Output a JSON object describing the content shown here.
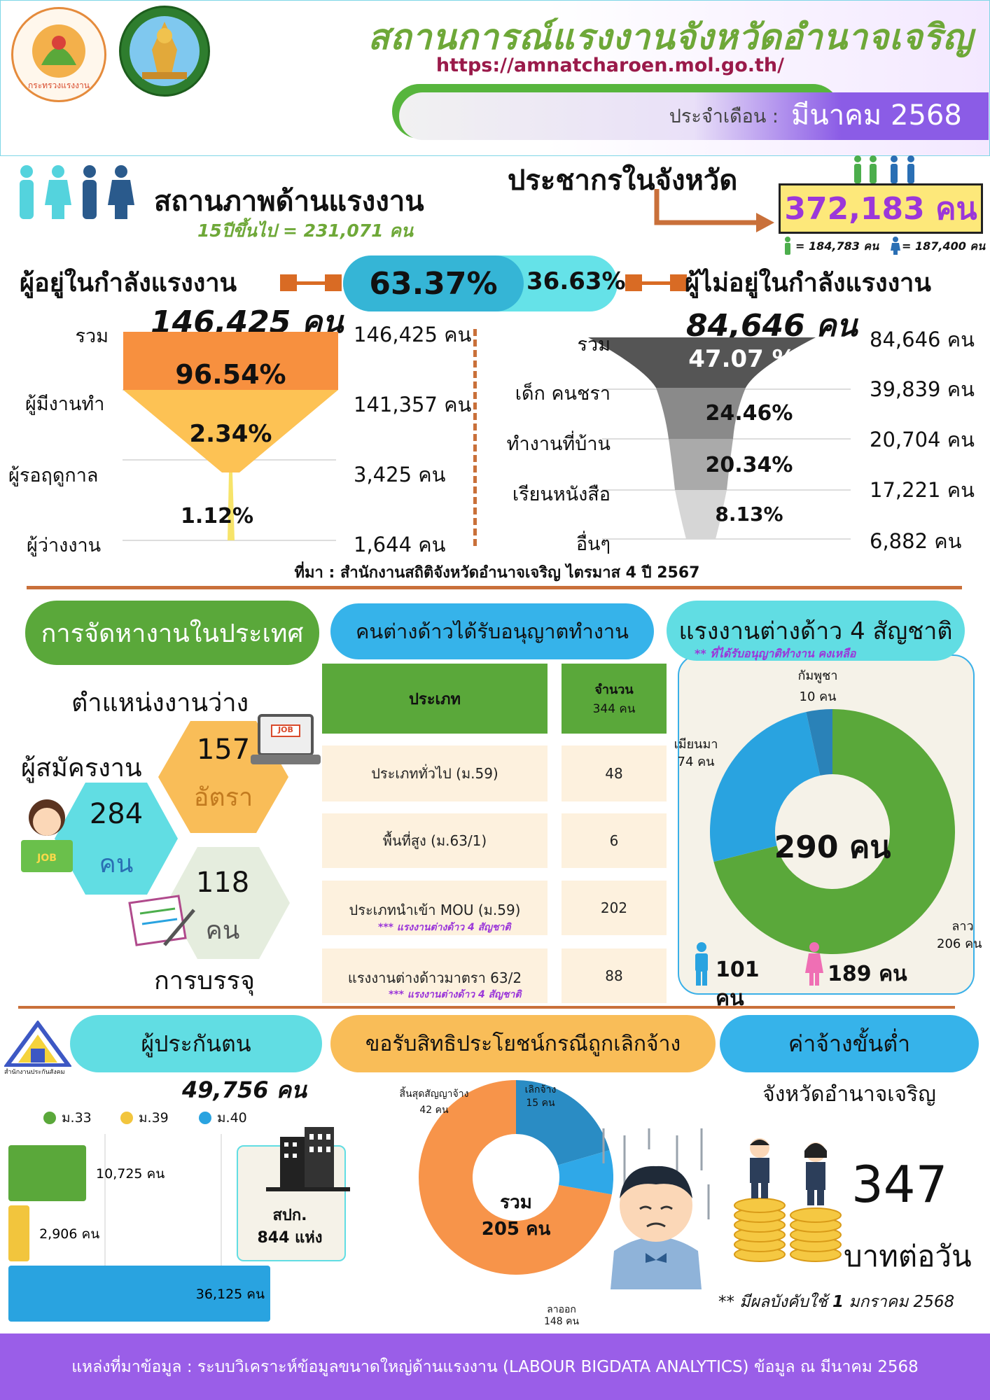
{
  "header": {
    "title": "สถานการณ์แรงงานจังหวัดอำนาจเจริญ",
    "url": "https://amnatcharoen.mol.go.th/",
    "month_label": "ประจำเดือน :",
    "month_value": "มีนาคม 2568",
    "logo1_text": "กระทรวงแรงงาน"
  },
  "labor_status": {
    "title": "สถานภาพด้านแรงงาน",
    "subtitle": "15ปีขึ้นไป = 231,071 คน",
    "population_title": "ประชากรในจังหวัด",
    "population_total": "372,183 คน",
    "population_male": "= 184,783 คน",
    "population_female": "= 187,400 คน",
    "in_force_title": "ผู้อยู่ในกำลังแรงงาน",
    "in_force_total": "146,425 คน",
    "in_force_pct": "63.37%",
    "out_force_pct": "36.63%",
    "out_force_title": "ผู้ไม่อยู่ในกำลังแรงงาน",
    "out_force_total": "84,646 คน",
    "in_rows": [
      {
        "label": "รวม",
        "value": "146,425 คน"
      },
      {
        "label": "ผู้มีงานทำ",
        "value": "141,357 คน"
      },
      {
        "label": "ผู้รอฤดูกาล",
        "value": "3,425 คน"
      },
      {
        "label": "ผู้ว่างงาน",
        "value": "1,644 คน"
      }
    ],
    "in_pcts": [
      "96.54%",
      "2.34%",
      "1.12%"
    ],
    "out_rows": [
      {
        "label": "รวม",
        "value": "84,646 คน"
      },
      {
        "label": "เด็ก คนชรา",
        "value": "39,839 คน"
      },
      {
        "label": "ทำงานที่บ้าน",
        "value": "20,704 คน"
      },
      {
        "label": "เรียนหนังสือ",
        "value": "17,221 คน"
      },
      {
        "label": "อื่นๆ",
        "value": "6,882 คน"
      }
    ],
    "out_pcts": [
      "47.07 %",
      "24.46%",
      "20.34%",
      "8.13%"
    ],
    "source": "ที่มา : สำนักงานสถิติจังหวัดอำนาจเจริญ ไตรมาส 4 ปี 2567"
  },
  "job_placement": {
    "title": "การจัดหางานในประเทศ",
    "vacancy_label": "ตำแหน่งงานว่าง",
    "vacancy_value": "157",
    "vacancy_unit": "อัตรา",
    "applicant_label": "ผู้สมัครงาน",
    "applicant_value": "284",
    "applicant_unit": "คน",
    "placement_value": "118",
    "placement_unit": "คน",
    "placement_label": "การบรรจุ",
    "job_sign": "JOB"
  },
  "foreign_permit": {
    "title": "คนต่างด้าวได้รับอนุญาตทำงาน",
    "col_type": "ประเภท",
    "col_count": "จำนวน",
    "col_count_sub": "344 คน",
    "rows": [
      {
        "type": "ประเภททั่วไป (ม.59)",
        "count": "48",
        "note": ""
      },
      {
        "type": "พื้นที่สูง (ม.63/1)",
        "count": "6",
        "note": ""
      },
      {
        "type": "ประเภทนำเข้า MOU (ม.59)",
        "count": "202",
        "note": "*** แรงงานต่างด้าว 4 สัญชาติ"
      },
      {
        "type": "แรงงานต่างด้าวมาตรา 63/2",
        "count": "88",
        "note": "*** แรงงานต่างด้าว 4 สัญชาติ"
      }
    ]
  },
  "foreign_4": {
    "title": "แรงงานต่างด้าว 4 สัญชาติ",
    "subtitle": "** ที่ได้รับอนุญาติทำงาน คงเหลือ",
    "total": "290 คน",
    "male": "101 คน",
    "female": "189 คน",
    "label_cambodia": "กัมพูชา",
    "label_cambodia_val": "10 คน",
    "label_myanmar": "เมียนมา",
    "label_myanmar_val": "74 คน",
    "label_laos": "ลาว",
    "label_laos_val": "206 คน"
  },
  "insured": {
    "title": "ผู้ประกันตน",
    "total": "49,756 คน",
    "logo_text": "สำนักงานประกันสังคม",
    "legend": [
      "ม.33",
      "ม.39",
      "ม.40"
    ],
    "bars": [
      {
        "label": "10,725 คน",
        "value": 10725
      },
      {
        "label": "2,906 คน",
        "value": 2906
      },
      {
        "label": "36,125 คน",
        "value": 36125
      }
    ],
    "office_label": "สปก.",
    "office_value": "844 แห่ง"
  },
  "severance": {
    "title": "ขอรับสิทธิประโยชน์กรณีถูกเลิกจ้าง",
    "center_label": "รวม",
    "center_value": "205 คน",
    "label_contract": "สิ้นสุดสัญญาจ้าง",
    "label_contract_val": "42 คน",
    "label_fired": "เลิกจ้าง",
    "label_fired_val": "15 คน",
    "label_quit": "ลาออก",
    "label_quit_val": "148 คน"
  },
  "min_wage": {
    "title": "ค่าจ้างขั้นต่ำ",
    "province": "จังหวัดอำนาจเจริญ",
    "value": "347",
    "unit": "บาทต่อวัน",
    "note_prefix": "** มีผลบังคับใช้",
    "note_bold": "1",
    "note_suffix": "มกราคม 2568"
  },
  "footer": {
    "text": "แหล่งที่มาข้อมูล : ระบบวิเคราะห์ข้อมูลขนาดใหญ่ด้านแรงงาน (LABOUR BIGDATA ANALYTICS) ข้อมูล ณ มีนาคม 2568"
  },
  "colors": {
    "green": "#5aa83a",
    "orange": "#f7a348",
    "blue": "#29a3e0",
    "cyan": "#61dde3",
    "purple": "#8b5ce6",
    "brown": "#c9703a"
  },
  "chart_data": [
    {
      "type": "pie",
      "title": "แรงงานต่างด้าว 4 สัญชาติ",
      "categories": [
        "ลาว",
        "เมียนมา",
        "กัมพูชา"
      ],
      "values": [
        206,
        74,
        10
      ],
      "colors": [
        "#5aa83a",
        "#29a3e0",
        "#2a82b8"
      ]
    },
    {
      "type": "bar",
      "title": "ผู้ประกันตน",
      "categories": [
        "ม.33",
        "ม.39",
        "ม.40"
      ],
      "values": [
        10725,
        2906,
        36125
      ],
      "colors": [
        "#5aa83a",
        "#f2c53d",
        "#29a3e0"
      ]
    },
    {
      "type": "pie",
      "title": "ขอรับสิทธิประโยชน์กรณีถูกเลิกจ้าง",
      "categories": [
        "ลาออก",
        "สิ้นสุดสัญญาจ้าง",
        "เลิกจ้าง"
      ],
      "values": [
        148,
        42,
        15
      ],
      "colors": [
        "#f7944a",
        "#2a8cc4",
        "#2fa8e8"
      ]
    }
  ]
}
